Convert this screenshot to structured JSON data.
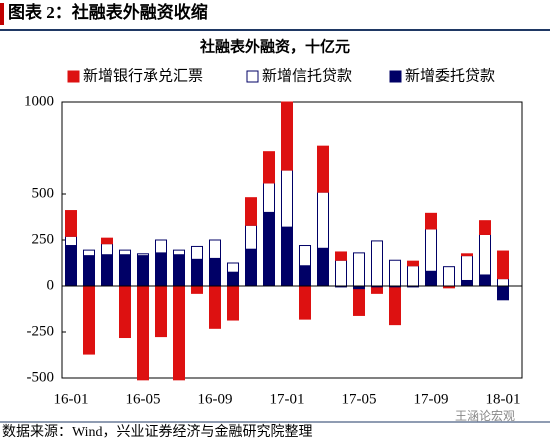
{
  "header": {
    "title": "图表 2：社融表外融资收缩"
  },
  "chart_data": {
    "type": "stacked-bar",
    "title": "社融表外融资，十亿元",
    "categories": [
      "16-01",
      null,
      null,
      null,
      "16-05",
      null,
      null,
      null,
      "16-09",
      null,
      null,
      null,
      "17-01",
      null,
      null,
      null,
      "17-05",
      null,
      null,
      null,
      "17-09",
      null,
      null,
      null,
      "18-01"
    ],
    "series": [
      {
        "name": "新增委托贷款",
        "color": "#000066",
        "values": [
          220,
          165,
          170,
          170,
          165,
          180,
          170,
          145,
          150,
          75,
          200,
          400,
          320,
          110,
          205,
          -5,
          -20,
          -10,
          -10,
          -5,
          80,
          0,
          30,
          60,
          -75
        ]
      },
      {
        "name": "新增信托贷款",
        "color": "#ffffff",
        "values": [
          50,
          30,
          60,
          25,
          10,
          70,
          25,
          70,
          100,
          50,
          130,
          160,
          310,
          110,
          305,
          140,
          180,
          245,
          140,
          110,
          230,
          105,
          135,
          220,
          40
        ]
      },
      {
        "name": "新增银行承兑汇票",
        "color": "#dd1111",
        "values": [
          140,
          -370,
          30,
          -280,
          -510,
          -275,
          -510,
          -40,
          -230,
          -185,
          150,
          170,
          370,
          -180,
          250,
          45,
          -140,
          -30,
          -200,
          25,
          85,
          -10,
          10,
          75,
          150
        ]
      }
    ],
    "legend_order": [
      2,
      1,
      0
    ],
    "ylim": [
      -500,
      1000
    ],
    "yticks": [
      -500,
      -250,
      0,
      250,
      500,
      1000
    ],
    "grid": false
  },
  "footer": {
    "source": "数据来源：Wind，兴业证券经济与金融研究院整理",
    "watermark": "王涵论宏观"
  }
}
